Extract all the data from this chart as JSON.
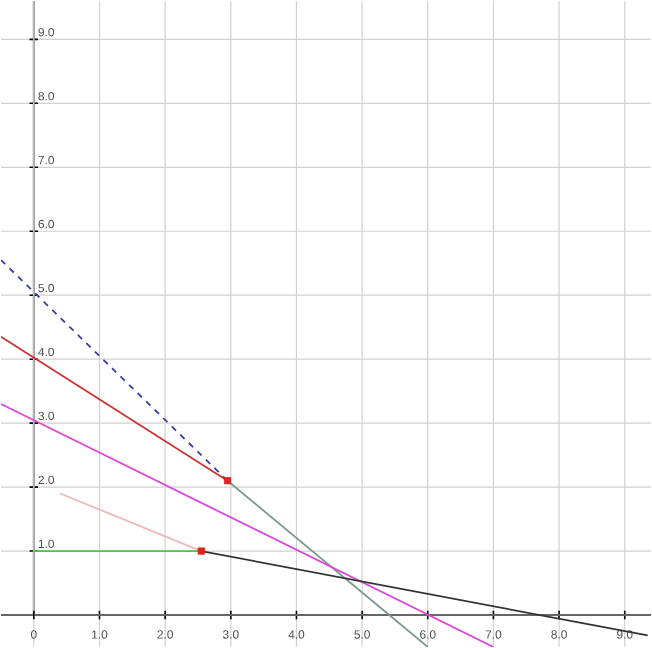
{
  "chart_data": {
    "type": "line",
    "grid": true,
    "marker": "none",
    "xlim": [
      -0.5,
      9.4
    ],
    "ylim": [
      -0.5,
      9.6
    ],
    "xticks": [
      {
        "value": 0,
        "label": "0"
      },
      {
        "value": 1,
        "label": "1.0"
      },
      {
        "value": 2,
        "label": "2.0"
      },
      {
        "value": 3,
        "label": "3.0"
      },
      {
        "value": 4,
        "label": "4.0"
      },
      {
        "value": 5,
        "label": "5.0"
      },
      {
        "value": 6,
        "label": "6.0"
      },
      {
        "value": 7,
        "label": "7.0"
      },
      {
        "value": 8,
        "label": "8.0"
      },
      {
        "value": 9,
        "label": "9.0"
      }
    ],
    "yticks": [
      {
        "value": 1,
        "label": "1.0"
      },
      {
        "value": 2,
        "label": "2.0"
      },
      {
        "value": 3,
        "label": "3.0"
      },
      {
        "value": 4,
        "label": "4.0"
      },
      {
        "value": 5,
        "label": "5.0"
      },
      {
        "value": 6,
        "label": "6.0"
      },
      {
        "value": 7,
        "label": "7.0"
      },
      {
        "value": 8,
        "label": "8.0"
      },
      {
        "value": 9,
        "label": "9.0"
      }
    ],
    "series": [
      {
        "color": "#3a3aa8",
        "line_style": "dashed",
        "x": [
          -0.5,
          2.95
        ],
        "values": [
          5.55,
          2.1
        ]
      },
      {
        "color": "#7a9a8a",
        "line_style": "solid",
        "x": [
          2.95,
          6.0
        ],
        "values": [
          2.1,
          -0.5
        ]
      },
      {
        "color": "#cc3333",
        "line_style": "solid",
        "x": [
          -0.5,
          2.95
        ],
        "values": [
          4.35,
          2.1
        ]
      },
      {
        "color": "#dd44dd",
        "line_style": "solid",
        "x": [
          -0.5,
          7.0
        ],
        "values": [
          3.3,
          -0.5
        ]
      },
      {
        "color": "#f0b8b8",
        "line_style": "solid",
        "x": [
          0.4,
          2.55
        ],
        "values": [
          1.9,
          1.0
        ]
      },
      {
        "color": "#44cc44",
        "line_style": "solid",
        "x": [
          0,
          2.55
        ],
        "values": [
          1.0,
          1.0
        ]
      },
      {
        "color": "#333333",
        "line_style": "solid",
        "x": [
          2.55,
          9.35
        ],
        "values": [
          1.0,
          -0.32
        ]
      },
      {
        "type": "scatter",
        "marker": "square",
        "color": "#dd2222",
        "x": [
          2.95,
          2.55
        ],
        "values": [
          2.1,
          1.0
        ]
      }
    ]
  }
}
